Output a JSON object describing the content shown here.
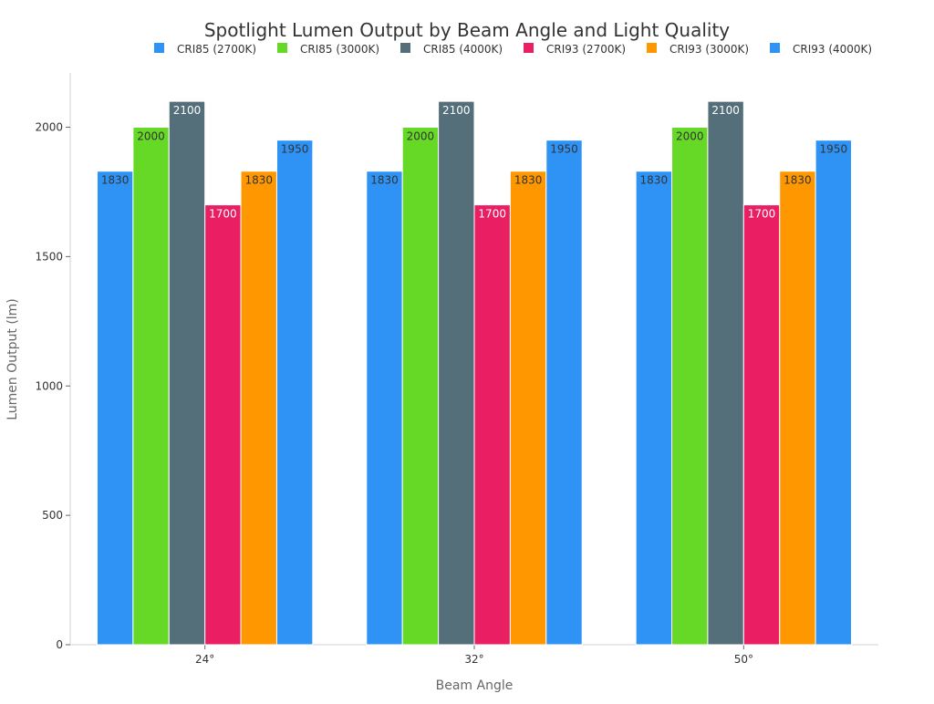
{
  "chart_data": {
    "type": "bar",
    "title": "Spotlight Lumen Output by Beam Angle and Light Quality",
    "xlabel": "Beam Angle",
    "ylabel": "Lumen Output (lm)",
    "categories": [
      "24°",
      "32°",
      "50°"
    ],
    "ylim": [
      0,
      2200
    ],
    "yticks": [
      0,
      500,
      1000,
      1500,
      2000
    ],
    "grid": false,
    "legend_position": "top",
    "series": [
      {
        "name": "CRI85 (2700K)",
        "color": "#2e93f5",
        "label_color": "#333333",
        "values": [
          1830,
          1830,
          1830
        ]
      },
      {
        "name": "CRI85 (3000K)",
        "color": "#66d926",
        "label_color": "#333333",
        "values": [
          2000,
          2000,
          2000
        ]
      },
      {
        "name": "CRI85 (4000K)",
        "color": "#546e7a",
        "label_color": "#ffffff",
        "values": [
          2100,
          2100,
          2100
        ]
      },
      {
        "name": "CRI93 (2700K)",
        "color": "#e91e63",
        "label_color": "#ffffff",
        "values": [
          1700,
          1700,
          1700
        ]
      },
      {
        "name": "CRI93 (3000K)",
        "color": "#ff9800",
        "label_color": "#333333",
        "values": [
          1830,
          1830,
          1830
        ]
      },
      {
        "name": "CRI93 (4000K)",
        "color": "#2e93f5",
        "label_color": "#333333",
        "values": [
          1950,
          1950,
          1950
        ]
      }
    ]
  }
}
